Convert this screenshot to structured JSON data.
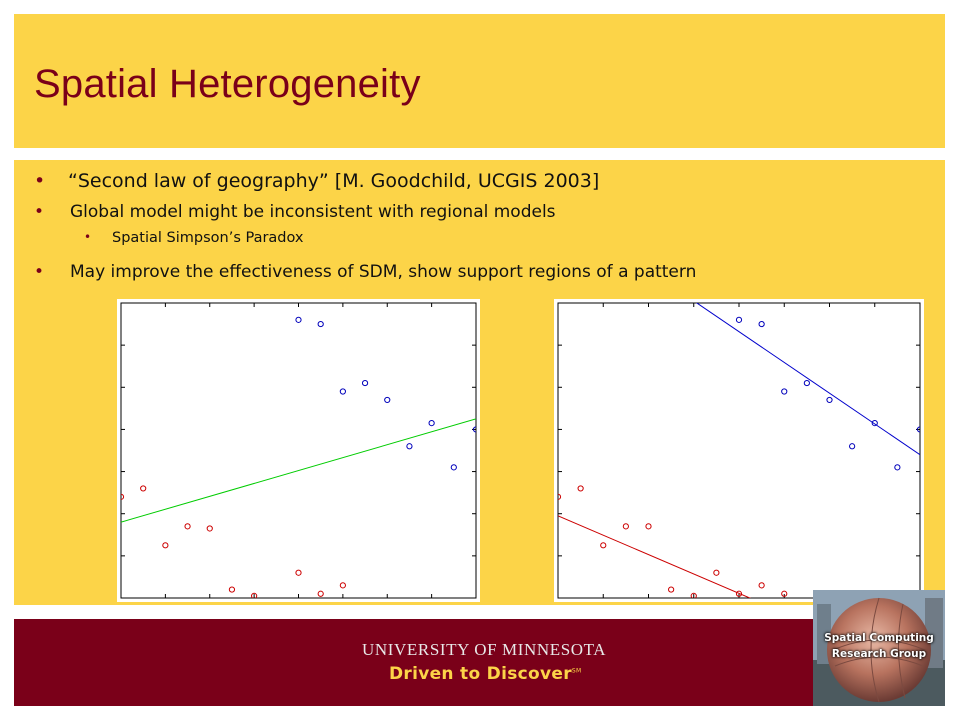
{
  "slide": {
    "title": "Spatial Heterogeneity",
    "bullets": [
      {
        "marker": "•",
        "text": "“Second law of geography” [M. Goodchild, UCGIS 2003]"
      },
      {
        "marker": "•",
        "text": "Global model might be inconsistent with regional models"
      },
      {
        "marker": "•",
        "text": "Spatial Simpson’s Paradox"
      },
      {
        "marker": "•",
        "text": "May improve the effectiveness of SDM, show support regions of a pattern"
      }
    ]
  },
  "footer": {
    "university": "UNIVERSITY OF MINNESOTA",
    "tagline": "Driven to Discover",
    "tagline_mark": "SM",
    "logo": {
      "line1": "Spatial Computing",
      "line2": "Research Group"
    }
  },
  "colors": {
    "gold": "#fcd448",
    "maroon": "#7a0019",
    "red_points": "#cc0000",
    "blue_points": "#0000bb",
    "global_fit": "#00cc00",
    "red_fit": "#cc0000",
    "blue_fit": "#0000cc"
  },
  "chart_data": [
    {
      "type": "scatter",
      "title": "",
      "xlabel": "",
      "ylabel": "",
      "xlim": [
        0,
        16
      ],
      "ylim": [
        0,
        14
      ],
      "series": [
        {
          "color": "red",
          "x": [
            0,
            1,
            2,
            3,
            4,
            5,
            6,
            8,
            9,
            10
          ],
          "y": [
            4.8,
            5.2,
            2.5,
            3.4,
            3.3,
            0.4,
            0.1,
            1.2,
            0.2,
            0.6
          ]
        },
        {
          "color": "blue",
          "x": [
            8,
            9,
            10,
            11,
            12,
            13,
            14,
            15,
            16
          ],
          "y": [
            13.2,
            13.0,
            9.8,
            10.2,
            9.4,
            7.2,
            8.3,
            6.2,
            8.0
          ]
        }
      ],
      "fit_lines": [
        {
          "color": "green",
          "x": [
            0,
            16
          ],
          "y": [
            3.6,
            8.5
          ]
        }
      ]
    },
    {
      "type": "scatter",
      "title": "",
      "xlabel": "",
      "ylabel": "",
      "xlim": [
        0,
        16
      ],
      "ylim": [
        0,
        14
      ],
      "series": [
        {
          "color": "red",
          "x": [
            0,
            1,
            2,
            3,
            4,
            5,
            6,
            7,
            8,
            9,
            10
          ],
          "y": [
            4.8,
            5.2,
            2.5,
            3.4,
            3.4,
            0.4,
            0.1,
            1.2,
            0.2,
            0.6,
            0.2
          ]
        },
        {
          "color": "blue",
          "x": [
            8,
            9,
            10,
            11,
            12,
            13,
            14,
            15,
            16
          ],
          "y": [
            13.2,
            13.0,
            9.8,
            10.2,
            9.4,
            7.2,
            8.3,
            6.2,
            8.0
          ]
        }
      ],
      "fit_lines": [
        {
          "color": "red",
          "x": [
            0,
            10
          ],
          "y": [
            3.9,
            -0.7
          ]
        },
        {
          "color": "blue",
          "x": [
            6,
            16
          ],
          "y": [
            14.1,
            6.8
          ]
        }
      ]
    }
  ]
}
